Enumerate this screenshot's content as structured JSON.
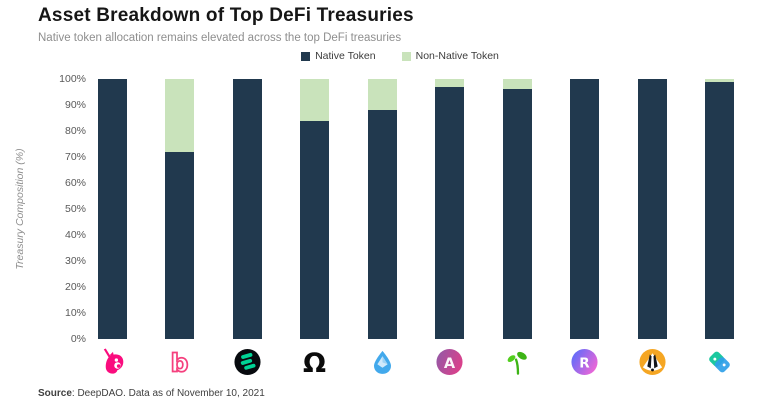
{
  "header": {
    "title": "Asset Breakdown of Top DeFi Treasuries",
    "subtitle": "Native token allocation remains elevated across the top DeFi treasuries"
  },
  "legend": {
    "items": [
      {
        "label": "Native Token",
        "color": "#21394E"
      },
      {
        "label": "Non-Native Token",
        "color": "#C9E3BB"
      }
    ]
  },
  "y_axis": {
    "title": "Treasury Composition (%)",
    "ticks": [
      {
        "label": "0%",
        "value": 0
      },
      {
        "label": "10%",
        "value": 10
      },
      {
        "label": "20%",
        "value": 20
      },
      {
        "label": "30%",
        "value": 30
      },
      {
        "label": "40%",
        "value": 40
      },
      {
        "label": "50%",
        "value": 50
      },
      {
        "label": "60%",
        "value": 60
      },
      {
        "label": "70%",
        "value": 70
      },
      {
        "label": "80%",
        "value": 80
      },
      {
        "label": "90%",
        "value": 90
      },
      {
        "label": "100%",
        "value": 100
      }
    ]
  },
  "chart_data": {
    "type": "bar",
    "stacked": true,
    "title": "Asset Breakdown of Top DeFi Treasuries",
    "subtitle": "Native token allocation remains elevated across the top DeFi treasuries",
    "xlabel": "",
    "ylabel": "Treasury Composition (%)",
    "ylim": [
      0,
      100
    ],
    "grid": false,
    "legend_position": "top-center",
    "x_axis_labels_are_logos": true,
    "categories": [
      "Uniswap",
      "BitDAO",
      "Compound",
      "Olympus",
      "Lido",
      "Aave",
      "Seedling-logo protocol",
      "Rari Capital",
      "BadgerDAO",
      "Teal-diamonds-logo protocol"
    ],
    "icons": [
      "uniswap-unicorn-icon",
      "bitdao-b-icon",
      "compound-icon",
      "olympus-omega-icon",
      "lido-drop-icon",
      "aave-icon",
      "seedling-icon",
      "rari-icon",
      "badger-icon",
      "teal-diamonds-icon"
    ],
    "series": [
      {
        "name": "Native Token",
        "color": "#21394E",
        "values": [
          100,
          72,
          100,
          84,
          88,
          97,
          96,
          100,
          100,
          99
        ]
      },
      {
        "name": "Non-Native Token",
        "color": "#C9E3BB",
        "values": [
          0,
          28,
          0,
          16,
          12,
          3,
          4,
          0,
          0,
          1
        ]
      }
    ]
  },
  "source": {
    "prefix": "Source",
    "rest": ": DeepDAO. Data as of November 10, 2021"
  }
}
